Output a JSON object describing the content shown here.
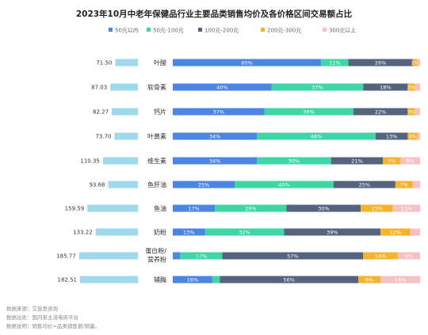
{
  "chart_data": {
    "type": "bar",
    "title": "2023年10月中老年保健品行业主要品类销售均价及各价格区间交易额占比",
    "categories": [
      "叶酸",
      "软骨素",
      "钙片",
      "叶黄素",
      "维生素",
      "鱼肝油",
      "鱼油",
      "奶粉",
      "蛋白粉/营养粉",
      "辅酶"
    ],
    "category_lines": [
      [
        "叶酸"
      ],
      [
        "软骨素"
      ],
      [
        "钙片"
      ],
      [
        "叶黄素"
      ],
      [
        "维生素"
      ],
      [
        "鱼肝油"
      ],
      [
        "鱼油"
      ],
      [
        "奶粉"
      ],
      [
        "蛋白粉/",
        "营养粉"
      ],
      [
        "辅酶"
      ]
    ],
    "avg_price": {
      "values": [
        71.5,
        87.03,
        82.27,
        73.7,
        110.35,
        93.68,
        159.59,
        133.22,
        185.77,
        182.51
      ],
      "labels": [
        "71.50",
        "87.03",
        "82.27",
        "73.70",
        "110.35",
        "93.68",
        "159.59",
        "133.22",
        "185.77",
        "182.51"
      ],
      "color": "#9ed9ee"
    },
    "series": [
      {
        "name": "50元以内",
        "color": "#4b86e5",
        "values": [
          60,
          40,
          37,
          34,
          34,
          25,
          17,
          13,
          3,
          16
        ],
        "labels": [
          "60%",
          "40%",
          "37%",
          "34%",
          "34%",
          "25%",
          "17%",
          "13%",
          "",
          "16%"
        ]
      },
      {
        "name": "50元-100元",
        "color": "#3dd6a4",
        "values": [
          11,
          37,
          36,
          48,
          30,
          40,
          29,
          32,
          17,
          3
        ],
        "labels": [
          "11%",
          "37%",
          "36%",
          "48%",
          "30%",
          "40%",
          "29%",
          "32%",
          "17%",
          ""
        ]
      },
      {
        "name": "100元-200元",
        "color": "#55647e",
        "values": [
          26,
          18,
          22,
          13,
          21,
          25,
          30,
          39,
          57,
          56
        ],
        "labels": [
          "26%",
          "18%",
          "22%",
          "13%",
          "21%",
          "25%",
          "30%",
          "39%",
          "57%",
          "56%"
        ]
      },
      {
        "name": "200元-300元",
        "color": "#f7b32b",
        "values": [
          2,
          3,
          3,
          4,
          7,
          7,
          13,
          12,
          14,
          9
        ],
        "labels": [
          "2%",
          "3%",
          "3%",
          "4%",
          "7%",
          "7%",
          "13%",
          "12%",
          "14%",
          "9%"
        ]
      },
      {
        "name": "300元以上",
        "color": "#f6c1c1",
        "values": [
          1,
          2,
          2,
          1,
          8,
          3,
          11,
          4,
          9,
          16
        ],
        "labels": [
          "",
          "",
          "",
          "",
          "8%",
          "",
          "11%",
          "",
          "9%",
          "16%"
        ]
      }
    ]
  },
  "notes": [
    "数据来源：艾普思咨询",
    "数据出处：国内某主流电商平台",
    "数据说明：销售均价=品类销售额/销量。"
  ]
}
